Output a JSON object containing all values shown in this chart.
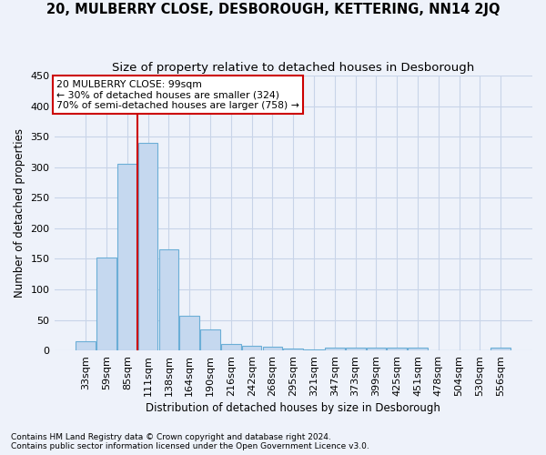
{
  "title": "20, MULBERRY CLOSE, DESBOROUGH, KETTERING, NN14 2JQ",
  "subtitle": "Size of property relative to detached houses in Desborough",
  "xlabel": "Distribution of detached houses by size in Desborough",
  "ylabel": "Number of detached properties",
  "footnote1": "Contains HM Land Registry data © Crown copyright and database right 2024.",
  "footnote2": "Contains public sector information licensed under the Open Government Licence v3.0.",
  "bins": [
    "33sqm",
    "59sqm",
    "85sqm",
    "111sqm",
    "138sqm",
    "164sqm",
    "190sqm",
    "216sqm",
    "242sqm",
    "268sqm",
    "295sqm",
    "321sqm",
    "347sqm",
    "373sqm",
    "399sqm",
    "425sqm",
    "451sqm",
    "478sqm",
    "504sqm",
    "530sqm",
    "556sqm"
  ],
  "bar_heights": [
    15,
    152,
    305,
    340,
    165,
    56,
    34,
    10,
    8,
    6,
    3,
    2,
    5,
    5,
    5,
    5,
    5,
    0,
    0,
    0,
    5
  ],
  "bar_color": "#c5d8ef",
  "bar_edge_color": "#6baed6",
  "vline_color": "#cc0000",
  "annotation_line1": "20 MULBERRY CLOSE: 99sqm",
  "annotation_line2": "← 30% of detached houses are smaller (324)",
  "annotation_line3": "70% of semi-detached houses are larger (758) →",
  "annotation_box_color": "white",
  "annotation_box_edge": "#cc0000",
  "ylim": [
    0,
    450
  ],
  "yticks": [
    0,
    50,
    100,
    150,
    200,
    250,
    300,
    350,
    400,
    450
  ],
  "grid_color": "#c8d4e8",
  "bg_color": "#eef2fa",
  "title_fontsize": 10.5,
  "subtitle_fontsize": 9.5,
  "axis_label_fontsize": 8.5,
  "tick_fontsize": 8,
  "annotation_fontsize": 7.8,
  "footnote_fontsize": 6.5
}
